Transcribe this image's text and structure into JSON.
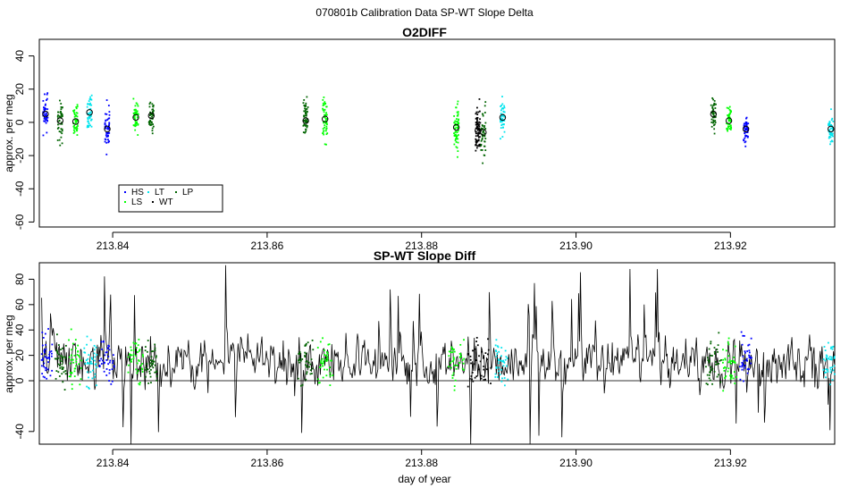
{
  "figure": {
    "super_title": "070801b   Calibration Data SP-WT Slope Delta"
  },
  "colors": {
    "HS": "#0000ff",
    "LS": "#00ff00",
    "LT": "#00e5ee",
    "WT": "#000000",
    "LP": "#006400",
    "line": "#000000"
  },
  "chart_data": [
    {
      "type": "scatter",
      "title": "O2DIFF",
      "xlabel": "",
      "ylabel": "approx. per meg",
      "xlim": [
        213.8305,
        213.9335
      ],
      "ylim": [
        -63,
        50
      ],
      "x_ticks": [
        "213.84",
        "213.86",
        "213.88",
        "213.90",
        "213.92"
      ],
      "x_tick_values": [
        213.84,
        213.86,
        213.88,
        213.9,
        213.92
      ],
      "y_ticks": [
        "-60",
        "-40",
        "-20",
        "0",
        "20",
        "40"
      ],
      "y_tick_values": [
        -60,
        -40,
        -20,
        0,
        20,
        40
      ],
      "grid": false,
      "legend": {
        "position": "bottom-left",
        "entries": [
          "HS",
          "LT",
          "LP",
          "LS",
          "WT"
        ]
      },
      "groups": [
        {
          "series": "HS",
          "x": 213.8313,
          "mean": 5,
          "spread": 12,
          "n": 45
        },
        {
          "series": "LP",
          "x": 213.8332,
          "mean": 1,
          "spread": 14,
          "n": 45
        },
        {
          "series": "LS",
          "x": 213.8352,
          "mean": 0.5,
          "spread": 11,
          "n": 45
        },
        {
          "series": "LT",
          "x": 213.837,
          "mean": 6,
          "spread": 11,
          "n": 45
        },
        {
          "series": "HS",
          "x": 213.8393,
          "mean": -4,
          "spread": 16,
          "n": 50
        },
        {
          "series": "LS",
          "x": 213.843,
          "mean": 3,
          "spread": 12,
          "n": 45
        },
        {
          "series": "LP",
          "x": 213.845,
          "mean": 4,
          "spread": 11,
          "n": 45
        },
        {
          "series": "LP",
          "x": 213.865,
          "mean": 1,
          "spread": 17,
          "n": 50
        },
        {
          "series": "LS",
          "x": 213.8675,
          "mean": 2,
          "spread": 16,
          "n": 50
        },
        {
          "series": "LS",
          "x": 213.8845,
          "mean": -3,
          "spread": 18,
          "n": 60
        },
        {
          "series": "WT",
          "x": 213.8873,
          "mean": -5,
          "spread": 20,
          "n": 70
        },
        {
          "series": "LP",
          "x": 213.888,
          "mean": -6,
          "spread": 18,
          "n": 45
        },
        {
          "series": "LT",
          "x": 213.8905,
          "mean": 3,
          "spread": 14,
          "n": 45
        },
        {
          "series": "LP",
          "x": 213.9178,
          "mean": 5,
          "spread": 11,
          "n": 45
        },
        {
          "series": "LS",
          "x": 213.9198,
          "mean": 1,
          "spread": 11,
          "n": 45
        },
        {
          "series": "HS",
          "x": 213.922,
          "mean": -4,
          "spread": 12,
          "n": 45
        },
        {
          "series": "LT",
          "x": 213.933,
          "mean": -4,
          "spread": 11,
          "n": 45
        }
      ]
    },
    {
      "type": "line",
      "title": "SP-WT Slope Diff",
      "xlabel": "day of year",
      "ylabel": "approx. per meg",
      "xlim": [
        213.8305,
        213.9335
      ],
      "ylim": [
        -50,
        93
      ],
      "x_ticks": [
        "213.84",
        "213.86",
        "213.88",
        "213.90",
        "213.92"
      ],
      "x_tick_values": [
        213.84,
        213.86,
        213.88,
        213.9,
        213.92
      ],
      "y_ticks": [
        "-40",
        "0",
        "20",
        "40",
        "60",
        "80"
      ],
      "y_tick_values": [
        -40,
        0,
        20,
        40,
        60,
        80
      ],
      "reference_line": 0,
      "x_range": [
        213.8308,
        213.9338
      ],
      "n_points": 900,
      "mean": 15,
      "spread": 22,
      "overlay_points": [
        {
          "series": "HS",
          "x_range": [
            213.8308,
            213.8322
          ]
        },
        {
          "series": "LP",
          "x_range": [
            213.8325,
            213.834
          ]
        },
        {
          "series": "LS",
          "x_range": [
            213.8343,
            213.836
          ]
        },
        {
          "series": "LT",
          "x_range": [
            213.8362,
            213.838
          ]
        },
        {
          "series": "HS",
          "x_range": [
            213.8383,
            213.8402
          ]
        },
        {
          "series": "LS",
          "x_range": [
            213.842,
            213.844
          ]
        },
        {
          "series": "LP",
          "x_range": [
            213.8442,
            213.8458
          ]
        },
        {
          "series": "LP",
          "x_range": [
            213.864,
            213.866
          ]
        },
        {
          "series": "LS",
          "x_range": [
            213.8665,
            213.8685
          ]
        },
        {
          "series": "LS",
          "x_range": [
            213.8835,
            213.8855
          ]
        },
        {
          "series": "WT",
          "x_range": [
            213.886,
            213.889
          ]
        },
        {
          "series": "LT",
          "x_range": [
            213.8895,
            213.8912
          ]
        },
        {
          "series": "LP",
          "x_range": [
            213.9168,
            213.9188
          ]
        },
        {
          "series": "LS",
          "x_range": [
            213.919,
            213.9208
          ]
        },
        {
          "series": "HS",
          "x_range": [
            213.9212,
            213.9228
          ]
        },
        {
          "series": "LT",
          "x_range": [
            213.932,
            213.9335
          ]
        }
      ]
    }
  ]
}
